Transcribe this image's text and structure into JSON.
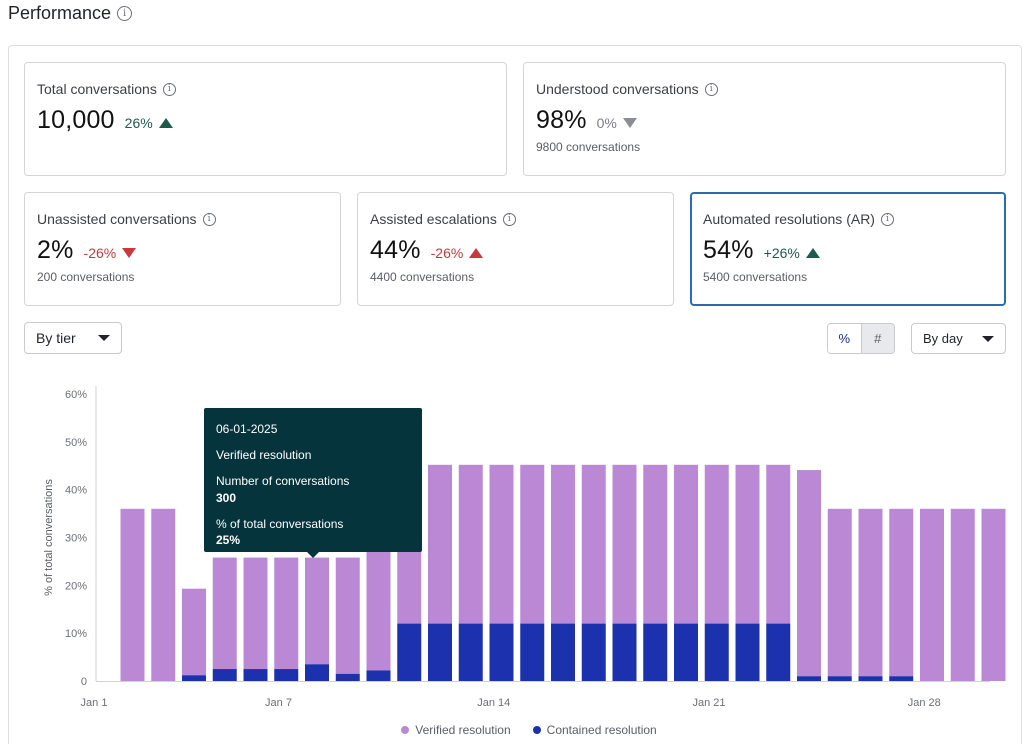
{
  "header": {
    "title": "Performance",
    "info_icon": "info-icon"
  },
  "cards": {
    "total": {
      "label": "Total conversations",
      "value": "10,000",
      "delta": "26%",
      "delta_dir": "up",
      "sub": ""
    },
    "understood": {
      "label": "Understood conversations",
      "value": "98%",
      "delta": "0%",
      "delta_dir": "down",
      "sub": "9800 conversations"
    },
    "unassisted": {
      "label": "Unassisted conversations",
      "value": "2%",
      "delta": "-26%",
      "delta_dir": "down",
      "sub": "200 conversations"
    },
    "assisted": {
      "label": "Assisted escalations",
      "value": "44%",
      "delta": "-26%",
      "delta_dir": "up",
      "sub": "4400 conversations"
    },
    "automated": {
      "label": "Automated resolutions (AR)",
      "value": "54%",
      "delta": "+26%",
      "delta_dir": "up",
      "sub": "5400 conversations",
      "selected": true
    }
  },
  "controls": {
    "tier_dropdown": "By tier",
    "toggle": {
      "percent": "%",
      "count": "#",
      "active": "percent"
    },
    "period_dropdown": "By day"
  },
  "colors": {
    "verified": "#bb88d6",
    "contained": "#1b31ad",
    "tooltip_bg": "#05343c",
    "positive": "#1e5a4c",
    "negative": "#c8383e",
    "accent_border": "#2a6cb0"
  },
  "tooltip": {
    "date": "06-01-2025",
    "series": "Verified resolution",
    "count_label": "Number of conversations",
    "count_value": "300",
    "pct_label": "% of total conversations",
    "pct_value": "25%"
  },
  "chart_data": {
    "type": "bar",
    "stacked": true,
    "ylabel": "% of total conversations",
    "ylim": [
      0,
      60
    ],
    "yticks": [
      "0",
      "10%",
      "20%",
      "30%",
      "40%",
      "50%",
      "60%"
    ],
    "yticks_values": [
      0,
      10,
      20,
      30,
      40,
      50,
      60
    ],
    "xtick_labels": [
      "Jan 1",
      "Jan 7",
      "Jan 14",
      "Jan 21",
      "Jan 28"
    ],
    "xtick_positions": [
      1,
      7,
      14,
      21,
      28
    ],
    "categories": [
      1,
      2,
      3,
      4,
      5,
      6,
      7,
      8,
      9,
      10,
      11,
      12,
      13,
      14,
      15,
      16,
      17,
      18,
      19,
      20,
      21,
      22,
      23,
      24,
      25,
      26,
      27,
      28,
      29
    ],
    "series": [
      {
        "name": "Contained resolution",
        "values": [
          0,
          0,
          1.2,
          2.5,
          2.5,
          2.5,
          3.5,
          1.5,
          2.2,
          12,
          12,
          12,
          12,
          12,
          12,
          12,
          12,
          12,
          12,
          12,
          12,
          12,
          1,
          1,
          1,
          1,
          0,
          0,
          0
        ]
      },
      {
        "name": "Verified resolution",
        "values": [
          36,
          36,
          18.1,
          23.3,
          23.3,
          23.3,
          22.3,
          24.3,
          26.8,
          33.2,
          33.2,
          33.2,
          33.2,
          33.2,
          33.2,
          33.2,
          33.2,
          33.2,
          33.2,
          33.2,
          33.2,
          33.2,
          43.1,
          35,
          35,
          35,
          36,
          36,
          36
        ]
      }
    ],
    "legend_position": "bottom",
    "legend": [
      "Verified resolution",
      "Contained resolution"
    ]
  }
}
